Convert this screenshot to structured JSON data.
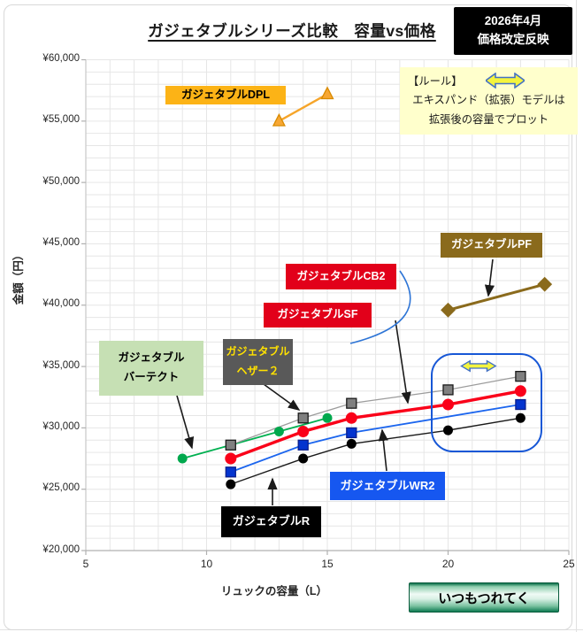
{
  "header": {
    "title": "ガジェタブルシリーズ比較　容量vs価格",
    "badge_line1": "2026年4月",
    "badge_line2": "価格改定反映"
  },
  "rule_box": {
    "heading": "【ルール】",
    "line1": "エキスパンド（拡張）モデルは",
    "line2": "拡張後の容量でプロット",
    "arrow_icon": "expand-double-arrow",
    "bg": "#ffffcc"
  },
  "footer": {
    "brand_button": "いつもつれてく",
    "button_color": "#0f7a52"
  },
  "callouts": {
    "dpl": {
      "text": "ガジェタブルDPL",
      "bg": "#fcb316",
      "fg": "#000000"
    },
    "pf": {
      "text": "ガジェタブルPF",
      "bg": "#8a6a1c",
      "fg": "#ffffff"
    },
    "cb2": {
      "text": "ガジェタブルCB2",
      "bg": "#e2001a",
      "fg": "#ffffff"
    },
    "sf": {
      "text": "ガジェタブルSF",
      "bg": "#e2001a",
      "fg": "#ffffff"
    },
    "vertect": {
      "line1": "ガジェタブル",
      "line2": "バーテクト",
      "bg": "#c6e0b4",
      "fg": "#000000"
    },
    "heather": {
      "line1": "ガジェタブル",
      "line2": "ヘザー２",
      "bg": "#595959",
      "fg": "#ffe100"
    },
    "wr2": {
      "text": "ガジェタブルWR2",
      "bg": "#1657f0",
      "fg": "#ffffff"
    },
    "r": {
      "text": "ガジェタブルR",
      "bg": "#000000",
      "fg": "#ffffff"
    }
  },
  "chart_data": {
    "type": "line",
    "title": "ガジェタブルシリーズ比較　容量vs価格",
    "xlabel": "リュックの容量（L）",
    "ylabel": "金額（円）",
    "xlim": [
      5,
      25
    ],
    "ylim": [
      20000,
      60000
    ],
    "grid": {
      "minor_x_step": 1,
      "minor_y_step": 1000,
      "color": "#e6e6e6"
    },
    "legend_position": "none",
    "x_ticks": [
      {
        "v": 5,
        "label": "5"
      },
      {
        "v": 10,
        "label": "10"
      },
      {
        "v": 15,
        "label": "15"
      },
      {
        "v": 20,
        "label": "20"
      },
      {
        "v": 25,
        "label": "25"
      }
    ],
    "y_ticks": [
      {
        "v": 20000,
        "label": "¥20,000"
      },
      {
        "v": 25000,
        "label": "¥25,000"
      },
      {
        "v": 30000,
        "label": "¥30,000"
      },
      {
        "v": 35000,
        "label": "¥35,000"
      },
      {
        "v": 40000,
        "label": "¥40,000"
      },
      {
        "v": 45000,
        "label": "¥45,000"
      },
      {
        "v": 50000,
        "label": "¥50,000"
      },
      {
        "v": 55000,
        "label": "¥55,000"
      },
      {
        "v": 60000,
        "label": "¥60,000"
      }
    ],
    "series": [
      {
        "name": "ガジェタブルバーテクト",
        "marker": "circle",
        "line_color": "#00b050",
        "marker_color": "#00a84d",
        "marker_stroke": "none",
        "line_width": 1.8,
        "marker_size": 11,
        "points": [
          [
            9,
            27500
          ],
          [
            13,
            29700
          ],
          [
            15,
            30800
          ]
        ]
      },
      {
        "name": "ガジェタブルヘザー２",
        "marker": "square",
        "line_color": "#9c9c9c",
        "marker_color": "#808080",
        "marker_stroke": "#1a1a1a",
        "line_width": 1.3,
        "marker_size": 11,
        "points": [
          [
            11,
            28600
          ],
          [
            14,
            30800
          ],
          [
            16,
            32000
          ],
          [
            20,
            33100
          ],
          [
            23,
            34200
          ]
        ]
      },
      {
        "name": "ガジェタブルWR2",
        "marker": "square",
        "line_color": "#1b65ee",
        "marker_color": "#0434cf",
        "marker_stroke": "#0a1e8c",
        "line_width": 1.8,
        "marker_size": 11,
        "points": [
          [
            11,
            26400
          ],
          [
            14,
            28600
          ],
          [
            16,
            29600
          ],
          [
            23,
            31900
          ]
        ]
      },
      {
        "name": "ガジェタブルR",
        "marker": "circle",
        "line_color": "#1a1a1a",
        "marker_color": "#000000",
        "marker_stroke": "none",
        "line_width": 1.4,
        "marker_size": 11,
        "points": [
          [
            11,
            25400
          ],
          [
            14,
            27500
          ],
          [
            16,
            28700
          ],
          [
            20,
            29800
          ],
          [
            23,
            30800
          ]
        ]
      },
      {
        "name": "ガジェタブルCB2・ガジェタブルSF",
        "marker": "circle",
        "line_color": "#fa0019",
        "marker_color": "#fa0019",
        "marker_stroke": "none",
        "line_width": 3.4,
        "marker_size": 13,
        "points": [
          [
            11,
            27500
          ],
          [
            14,
            29700
          ],
          [
            16,
            30800
          ],
          [
            20,
            31900
          ],
          [
            23,
            33000
          ]
        ]
      },
      {
        "name": "ガジェタブルDPL",
        "marker": "triangle",
        "line_color": "#f6a52a",
        "marker_color": "#f7a733",
        "marker_stroke": "#d88a00",
        "line_width": 2.4,
        "marker_size": 13,
        "points": [
          [
            13,
            55000
          ],
          [
            15,
            57200
          ]
        ]
      },
      {
        "name": "ガジェタブルPF",
        "marker": "diamond",
        "line_color": "#8a6a1c",
        "marker_color": "#8a6a1c",
        "marker_stroke": "#8a6a1c",
        "line_width": 3,
        "marker_size": 13,
        "points": [
          [
            20,
            39600
          ],
          [
            24,
            41700
          ]
        ]
      }
    ],
    "highlight_box": {
      "meaning": "expanded-capacity-models",
      "x_range": [
        19.3,
        23.9
      ],
      "y_range": [
        28200,
        36200
      ],
      "color": "#1757d6"
    }
  }
}
